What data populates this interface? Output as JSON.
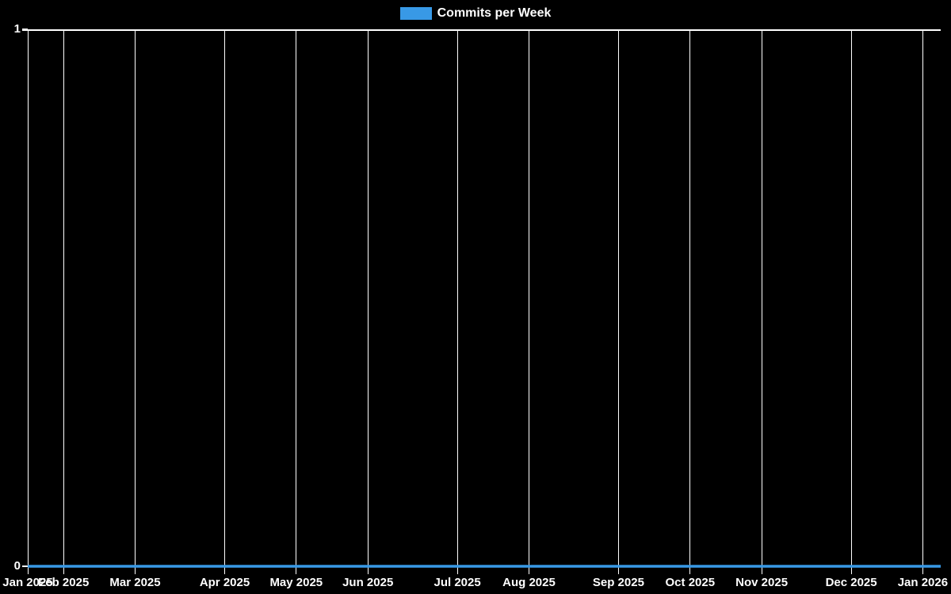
{
  "colors": {
    "background": "#000000",
    "grid": "#ffffff",
    "text": "#ffffff",
    "series": "#3899e6"
  },
  "legend": {
    "label": "Commits per Week"
  },
  "chart_data": {
    "type": "line",
    "title": "Commits per Week",
    "xlabel": "",
    "ylabel": "",
    "ylim": [
      0,
      1
    ],
    "y_ticks": [
      0,
      1
    ],
    "grid": {
      "vertical": true,
      "horizontal": false
    },
    "legend_position": "top-center",
    "x_unit": "week",
    "points_total": 52,
    "x_ticks": [
      {
        "label": "Jan 2025",
        "week": 0
      },
      {
        "label": "Feb 2025",
        "week": 2
      },
      {
        "label": "Mar 2025",
        "week": 6
      },
      {
        "label": "Apr 2025",
        "week": 11
      },
      {
        "label": "May 2025",
        "week": 15
      },
      {
        "label": "Jun 2025",
        "week": 19
      },
      {
        "label": "Jul 2025",
        "week": 24
      },
      {
        "label": "Aug 2025",
        "week": 28
      },
      {
        "label": "Sep 2025",
        "week": 33
      },
      {
        "label": "Oct 2025",
        "week": 37
      },
      {
        "label": "Nov 2025",
        "week": 41
      },
      {
        "label": "Dec 2025",
        "week": 46
      },
      {
        "label": "Jan 2026",
        "week": 50
      }
    ],
    "series": [
      {
        "name": "Commits per Week",
        "color": "#3899e6",
        "values": [
          0,
          0,
          0,
          0,
          0,
          0,
          0,
          0,
          0,
          0,
          0,
          0,
          0,
          0,
          0,
          0,
          0,
          0,
          0,
          0,
          0,
          0,
          0,
          0,
          0,
          0,
          0,
          0,
          0,
          0,
          0,
          0,
          0,
          0,
          0,
          0,
          0,
          0,
          0,
          0,
          0,
          0,
          0,
          0,
          0,
          0,
          0,
          0,
          0,
          0,
          0,
          0
        ]
      }
    ]
  }
}
